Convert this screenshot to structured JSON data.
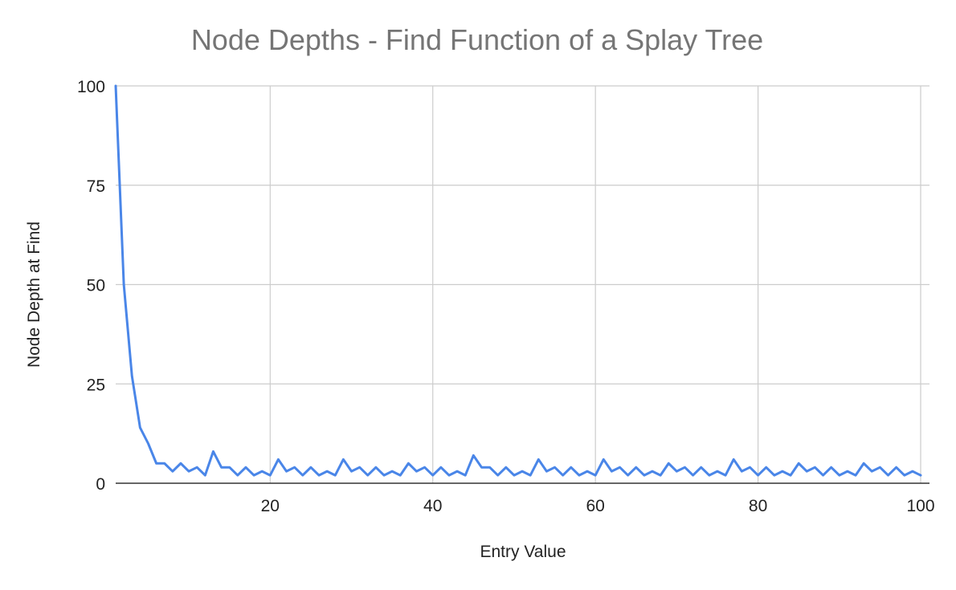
{
  "chart_data": {
    "type": "line",
    "title": "Node Depths - Find Function of a Splay Tree",
    "xlabel": "Entry Value",
    "ylabel": "Node Depth at Find",
    "xlim": [
      1,
      100
    ],
    "ylim": [
      0,
      100
    ],
    "x_ticks": [
      20,
      40,
      60,
      80,
      100
    ],
    "y_ticks": [
      0,
      25,
      50,
      75,
      100
    ],
    "grid": true,
    "legend": "none",
    "line_color": "#4a86e8",
    "series": [
      {
        "x": [
          1,
          2,
          3,
          4,
          5,
          6,
          7,
          8,
          9,
          10,
          11,
          12,
          13,
          14,
          15,
          16,
          17,
          18,
          19,
          20,
          21,
          22,
          23,
          24,
          25,
          26,
          27,
          28,
          29,
          30,
          31,
          32,
          33,
          34,
          35,
          36,
          37,
          38,
          39,
          40,
          41,
          42,
          43,
          44,
          45,
          46,
          47,
          48,
          49,
          50,
          51,
          52,
          53,
          54,
          55,
          56,
          57,
          58,
          59,
          60,
          61,
          62,
          63,
          64,
          65,
          66,
          67,
          68,
          69,
          70,
          71,
          72,
          73,
          74,
          75,
          76,
          77,
          78,
          79,
          80,
          81,
          82,
          83,
          84,
          85,
          86,
          87,
          88,
          89,
          90,
          91,
          92,
          93,
          94,
          95,
          96,
          97,
          98,
          99,
          100
        ],
        "values": [
          100,
          50,
          27,
          14,
          10,
          5,
          5,
          3,
          5,
          3,
          4,
          2,
          8,
          4,
          4,
          2,
          4,
          2,
          3,
          2,
          6,
          3,
          4,
          2,
          4,
          2,
          3,
          2,
          6,
          3,
          4,
          2,
          4,
          2,
          3,
          2,
          5,
          3,
          4,
          2,
          4,
          2,
          3,
          2,
          7,
          4,
          4,
          2,
          4,
          2,
          3,
          2,
          6,
          3,
          4,
          2,
          4,
          2,
          3,
          2,
          6,
          3,
          4,
          2,
          4,
          2,
          3,
          2,
          5,
          3,
          4,
          2,
          4,
          2,
          3,
          2,
          6,
          3,
          4,
          2,
          4,
          2,
          3,
          2,
          5,
          3,
          4,
          2,
          4,
          2,
          3,
          2,
          5,
          3,
          4,
          2,
          4,
          2,
          3,
          2
        ]
      }
    ]
  }
}
